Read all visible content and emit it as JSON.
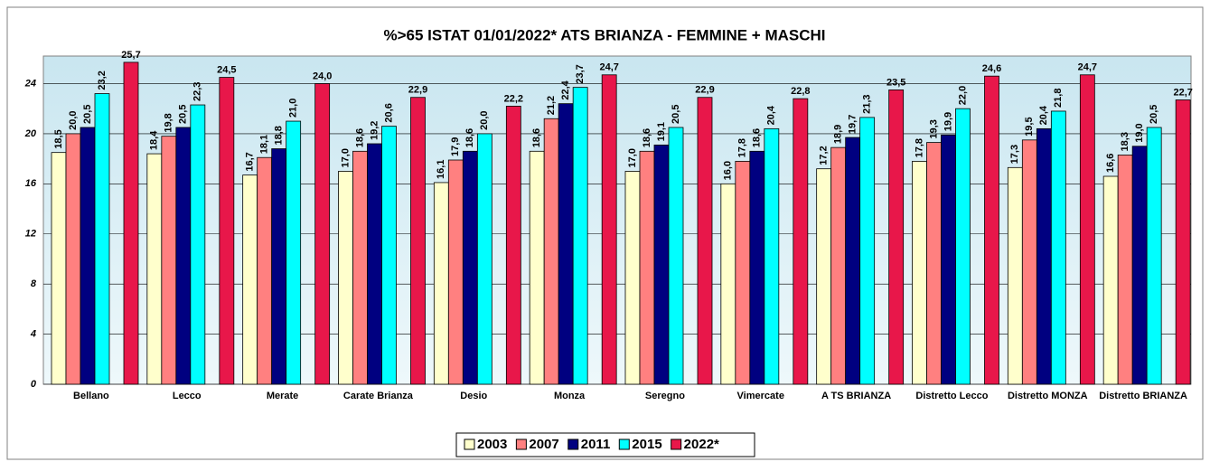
{
  "chart_data": {
    "type": "bar",
    "title": "%>65 ISTAT 01/01/2022*  ATS BRIANZA - FEMMINE + MASCHI",
    "categories": [
      "Bellano",
      "Lecco",
      "Merate",
      "Carate Brianza",
      "Desio",
      "Monza",
      "Seregno",
      "Vimercate",
      "A TS BRIANZA",
      "Distretto Lecco",
      "Distretto MONZA",
      "Distretto BRIANZA"
    ],
    "series": [
      {
        "name": "2003",
        "color": "#ffffcc",
        "values": [
          18.5,
          18.4,
          16.7,
          17.0,
          16.1,
          18.6,
          17.0,
          16.0,
          17.2,
          17.8,
          17.3,
          16.6
        ],
        "value_labels": [
          "18,5",
          "18,4",
          "16,7",
          "17,0",
          "16,1",
          "18,6",
          "17,0",
          "16,0",
          "17,2",
          "17,8",
          "17,3",
          "16,6"
        ]
      },
      {
        "name": "2007",
        "color": "#ff8080",
        "values": [
          20.0,
          19.8,
          18.1,
          18.6,
          17.9,
          21.2,
          18.6,
          17.8,
          18.9,
          19.3,
          19.5,
          18.3
        ],
        "value_labels": [
          "20,0",
          "19,8",
          "18,1",
          "18,6",
          "17,9",
          "21,2",
          "18,6",
          "17,8",
          "18,9",
          "19,3",
          "19,5",
          "18,3"
        ]
      },
      {
        "name": "2011",
        "color": "#000080",
        "values": [
          20.5,
          20.5,
          18.8,
          19.2,
          18.6,
          22.4,
          19.1,
          18.6,
          19.7,
          19.9,
          20.4,
          19.0
        ],
        "value_labels": [
          "20,5",
          "20,5",
          "18,8",
          "19,2",
          "18,6",
          "22,4",
          "19,1",
          "18,6",
          "19,7",
          "19,9",
          "20,4",
          "19,0"
        ]
      },
      {
        "name": "2015",
        "color": "#00ffff",
        "values": [
          23.2,
          22.3,
          21.0,
          20.6,
          20.0,
          23.7,
          20.5,
          20.4,
          21.3,
          22.0,
          21.8,
          20.5
        ],
        "value_labels": [
          "23,2",
          "22,3",
          "21,0",
          "20,6",
          "20,0",
          "23,7",
          "20,5",
          "20,4",
          "21,3",
          "22,0",
          "21,8",
          "20,5"
        ]
      },
      {
        "name": "2022*",
        "color": "#e8174a",
        "values": [
          25.7,
          24.5,
          24.0,
          22.9,
          22.2,
          24.7,
          22.9,
          22.8,
          23.5,
          24.6,
          24.7,
          22.7
        ],
        "value_labels": [
          "25,7",
          "24,5",
          "24,0",
          "22,9",
          "22,2",
          "24,7",
          "22,9",
          "22,8",
          "23,5",
          "24,6",
          "24,7",
          "22,7"
        ]
      }
    ],
    "ylim": [
      0,
      26.2
    ],
    "yticks": [
      0,
      4,
      8,
      12,
      16,
      20,
      24
    ],
    "grid": true
  }
}
